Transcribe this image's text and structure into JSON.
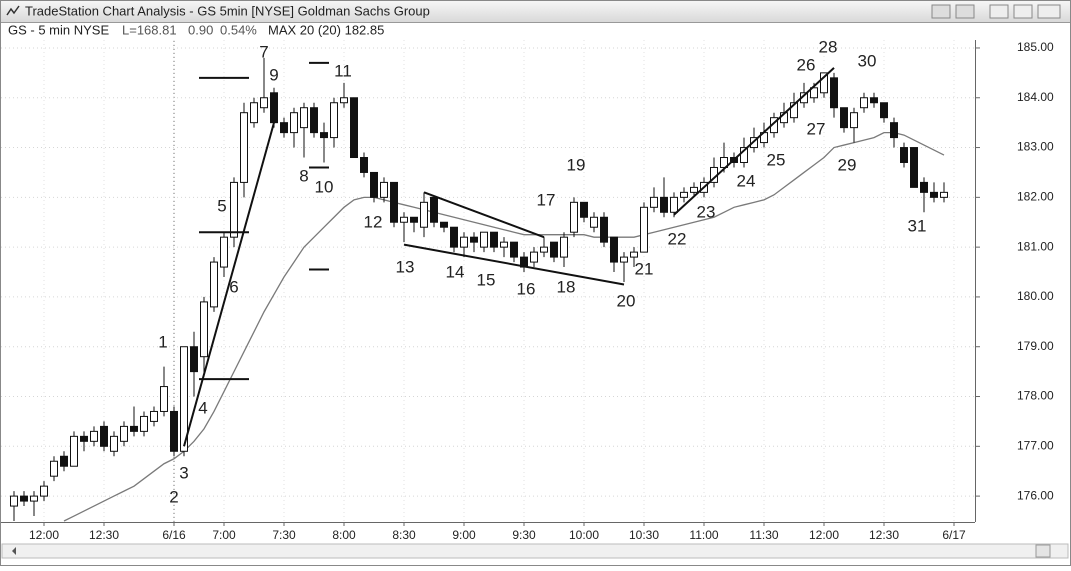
{
  "window": {
    "title": "TradeStation Chart Analysis - GS 5min [NYSE] Goldman Sachs Group"
  },
  "chart_data": {
    "type": "candlestick",
    "title": "GS - 5 min NYSE",
    "stats": [
      "L=168.81",
      "0.90",
      "0.54%",
      "MAX 20 (20) 182.85"
    ],
    "categories": [
      null,
      null,
      null,
      "12:00",
      null,
      null,
      null,
      null,
      null,
      "12:30",
      null,
      null,
      null,
      null,
      null,
      null,
      "6/16",
      null,
      null,
      null,
      null,
      "7:00",
      null,
      null,
      null,
      null,
      null,
      "7:30",
      null,
      null,
      null,
      null,
      null,
      "8:00",
      null,
      null,
      null,
      null,
      null,
      "8:30",
      null,
      null,
      null,
      null,
      null,
      "9:00",
      null,
      null,
      null,
      null,
      null,
      "9:30",
      null,
      null,
      null,
      null,
      null,
      "10:00",
      null,
      null,
      null,
      null,
      null,
      "10:30",
      null,
      null,
      null,
      null,
      null,
      "11:00",
      null,
      null,
      null,
      null,
      null,
      "11:30",
      null,
      null,
      null,
      null,
      null,
      "12:00",
      null,
      null,
      null,
      null,
      null,
      "12:30",
      null,
      null,
      null,
      null,
      null,
      null,
      "6/17"
    ],
    "open": [
      175.8,
      176.0,
      175.9,
      176.0,
      176.4,
      176.8,
      176.6,
      177.2,
      177.1,
      177.4,
      176.9,
      177.1,
      177.4,
      177.3,
      177.5,
      177.7,
      177.7,
      176.9,
      179.0,
      178.8,
      179.8,
      180.6,
      181.2,
      182.3,
      183.5,
      183.8,
      184.1,
      183.5,
      183.3,
      183.4,
      183.8,
      183.3,
      183.2,
      183.9,
      184.0,
      182.8,
      182.5,
      182.0,
      182.3,
      181.5,
      181.6,
      181.4,
      182.0,
      181.5,
      181.4,
      181.0,
      181.2,
      181.0,
      181.3,
      181.0,
      181.1,
      180.8,
      180.7,
      180.9,
      181.1,
      180.8,
      181.3,
      181.9,
      181.4,
      181.6,
      181.2,
      180.7,
      180.8,
      180.9,
      181.8,
      182.0,
      181.7,
      182.0,
      182.1,
      182.1,
      182.3,
      182.6,
      182.8,
      182.7,
      183.0,
      183.1,
      183.3,
      183.5,
      183.6,
      183.9,
      184.0,
      184.1,
      184.4,
      183.8,
      183.4,
      183.8,
      184.0,
      183.9,
      183.5,
      183.0,
      183.0,
      182.3,
      182.1,
      182.0,
      null
    ],
    "high": [
      176.1,
      176.1,
      176.1,
      176.3,
      176.8,
      176.9,
      177.3,
      177.3,
      177.4,
      177.5,
      177.3,
      177.5,
      177.8,
      177.7,
      177.8,
      178.6,
      177.8,
      179.0,
      179.3,
      180.0,
      180.8,
      181.3,
      182.4,
      183.9,
      184.0,
      184.8,
      184.2,
      183.6,
      183.8,
      183.9,
      183.9,
      183.5,
      184.0,
      184.3,
      184.0,
      182.9,
      182.5,
      182.4,
      182.3,
      181.7,
      181.6,
      182.1,
      182.0,
      181.5,
      181.4,
      181.3,
      181.3,
      181.3,
      181.3,
      181.2,
      181.1,
      180.9,
      181.0,
      181.2,
      181.1,
      181.3,
      182.0,
      181.9,
      181.7,
      181.7,
      181.2,
      180.9,
      181.0,
      181.9,
      182.2,
      182.4,
      182.1,
      182.2,
      182.3,
      182.4,
      182.8,
      183.1,
      182.9,
      183.2,
      183.4,
      183.5,
      183.7,
      183.9,
      184.1,
      184.3,
      184.3,
      184.5,
      184.5,
      183.8,
      183.8,
      184.1,
      184.1,
      183.9,
      183.6,
      183.1,
      183.0,
      182.4,
      182.3,
      182.3,
      null
    ],
    "low": [
      175.5,
      175.8,
      175.6,
      175.9,
      176.3,
      176.5,
      176.6,
      176.9,
      177.0,
      176.9,
      176.8,
      177.0,
      177.2,
      177.2,
      177.4,
      177.6,
      176.8,
      176.8,
      178.0,
      178.4,
      179.7,
      180.4,
      181.0,
      182.0,
      183.4,
      183.7,
      183.4,
      183.2,
      183.0,
      182.8,
      183.2,
      182.7,
      183.0,
      183.8,
      182.8,
      182.4,
      181.9,
      181.9,
      181.4,
      181.1,
      181.3,
      181.2,
      181.4,
      181.3,
      180.9,
      180.8,
      180.9,
      180.9,
      180.9,
      180.8,
      180.7,
      180.5,
      180.6,
      180.8,
      180.7,
      180.6,
      181.2,
      181.5,
      181.3,
      181.0,
      180.5,
      180.3,
      180.6,
      180.9,
      181.7,
      181.6,
      181.6,
      181.9,
      182.0,
      182.0,
      182.2,
      182.5,
      182.6,
      182.6,
      182.9,
      183.0,
      183.2,
      183.4,
      183.5,
      183.8,
      183.9,
      184.0,
      183.6,
      183.3,
      183.1,
      183.7,
      183.8,
      183.5,
      183.0,
      182.6,
      182.2,
      181.7,
      181.9,
      181.9,
      null
    ],
    "close": [
      176.0,
      175.9,
      176.0,
      176.2,
      176.7,
      176.6,
      177.2,
      177.1,
      177.3,
      177.0,
      177.2,
      177.4,
      177.3,
      177.6,
      177.7,
      178.2,
      176.9,
      179.0,
      178.5,
      179.9,
      180.7,
      181.2,
      182.3,
      183.7,
      183.9,
      184.0,
      183.5,
      183.3,
      183.7,
      183.8,
      183.3,
      183.2,
      183.9,
      184.0,
      182.8,
      182.5,
      182.0,
      182.3,
      181.5,
      181.6,
      181.5,
      181.9,
      181.5,
      181.4,
      181.0,
      181.2,
      181.1,
      181.3,
      181.0,
      181.1,
      180.8,
      180.6,
      180.9,
      181.0,
      180.8,
      181.2,
      181.9,
      181.6,
      181.6,
      181.1,
      180.7,
      180.8,
      180.9,
      181.8,
      182.0,
      181.7,
      182.0,
      182.1,
      182.2,
      182.3,
      182.6,
      182.8,
      182.7,
      183.0,
      183.2,
      183.3,
      183.6,
      183.7,
      183.9,
      184.1,
      184.2,
      184.5,
      183.8,
      183.4,
      183.7,
      184.0,
      183.9,
      183.6,
      183.2,
      182.7,
      182.2,
      182.1,
      182.0,
      182.1,
      null
    ],
    "up_color": "#ffffff",
    "down_color": "#111111",
    "ma": {
      "color": "#7a7a7a",
      "values": [
        null,
        null,
        null,
        null,
        null,
        175.5,
        175.6,
        175.7,
        175.8,
        175.9,
        176.0,
        176.1,
        176.2,
        176.35,
        176.5,
        176.65,
        176.75,
        176.9,
        177.1,
        177.35,
        177.7,
        178.1,
        178.5,
        178.9,
        179.3,
        179.7,
        180.05,
        180.4,
        180.7,
        181.0,
        181.2,
        181.4,
        181.6,
        181.8,
        181.95,
        182.0,
        182.0,
        181.95,
        181.9,
        181.85,
        181.8,
        181.75,
        181.7,
        181.65,
        181.6,
        181.55,
        181.5,
        181.45,
        181.4,
        181.35,
        181.3,
        181.25,
        181.25,
        181.25,
        181.25,
        181.25,
        181.25,
        181.25,
        181.2,
        181.2,
        181.2,
        181.2,
        181.2,
        181.25,
        181.3,
        181.35,
        181.4,
        181.45,
        181.5,
        181.55,
        181.6,
        181.7,
        181.8,
        181.85,
        181.9,
        181.95,
        182.05,
        182.2,
        182.35,
        182.5,
        182.65,
        182.8,
        183.0,
        183.05,
        183.1,
        183.15,
        183.2,
        183.3,
        183.3,
        183.25,
        183.15,
        183.05,
        182.95,
        182.85,
        null
      ]
    },
    "trendlines": [
      {
        "start": [
          17,
          177.0
        ],
        "end": [
          26,
          183.5
        ]
      },
      {
        "start": [
          41,
          182.1
        ],
        "end": [
          53,
          181.2
        ]
      },
      {
        "start": [
          39,
          181.05
        ],
        "end": [
          61,
          180.25
        ]
      },
      {
        "start": [
          66,
          181.65
        ],
        "end": [
          82,
          184.6
        ]
      }
    ],
    "levels": [
      {
        "bars": [
          19,
          23
        ],
        "price": 184.4
      },
      {
        "bars": [
          30,
          31
        ],
        "price": 184.7
      },
      {
        "bars": [
          30,
          31
        ],
        "price": 182.6
      },
      {
        "bars": [
          19,
          23
        ],
        "price": 181.3
      },
      {
        "bars": [
          30,
          31
        ],
        "price": 180.55
      },
      {
        "bars": [
          19,
          23
        ],
        "price": 178.35
      }
    ],
    "annotations": [
      "1",
      "2",
      "3",
      "4",
      "5",
      "6",
      "7",
      "8",
      "9",
      "10",
      "11",
      "12",
      "13",
      "14",
      "15",
      "16",
      "17",
      "18",
      "19",
      "20",
      "21",
      "22",
      "23",
      "24",
      "25",
      "26",
      "27",
      "28",
      "29",
      "30",
      "31"
    ],
    "ylim": [
      175.5,
      185.16
    ],
    "yticks": [
      {
        "value": 176,
        "label": "176.00"
      },
      {
        "value": 177,
        "label": "177.00"
      },
      {
        "value": 178,
        "label": "178.00"
      },
      {
        "value": 179,
        "label": "179.00"
      },
      {
        "value": 180,
        "label": "180.00"
      },
      {
        "value": 181,
        "label": "181.00"
      },
      {
        "value": 182,
        "label": "182.00"
      },
      {
        "value": 183,
        "label": "183.00"
      },
      {
        "value": 184,
        "label": "184.00"
      },
      {
        "value": 185,
        "label": "185.00"
      }
    ],
    "grid": true
  }
}
